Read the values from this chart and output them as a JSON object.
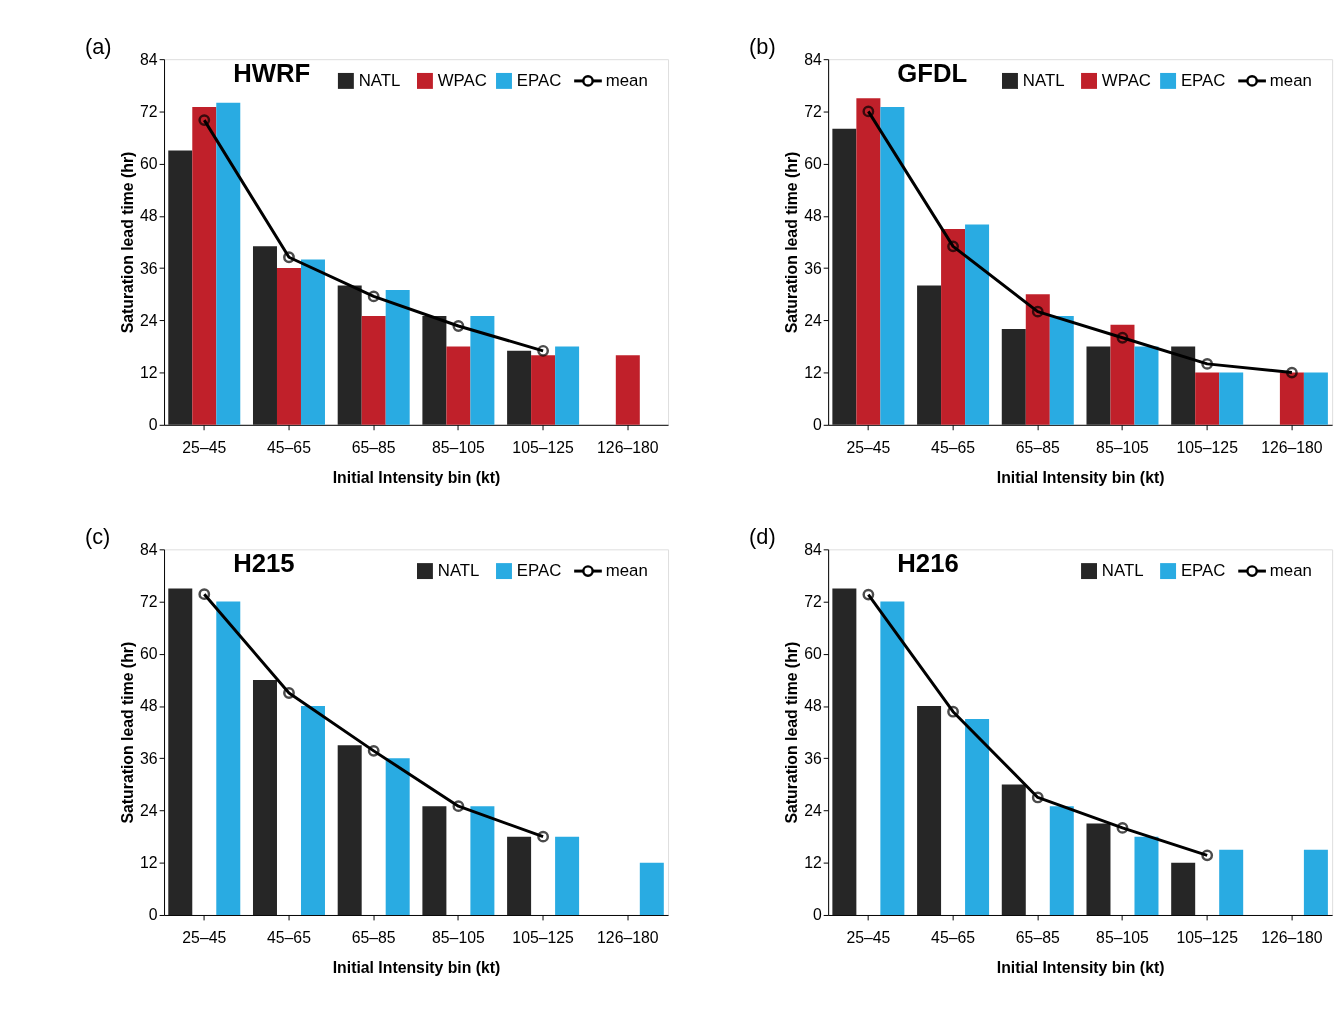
{
  "chart_data": [
    {
      "type": "bar",
      "title": "HWRF",
      "xlabel": "Initial Intensity bin (kt)",
      "ylabel": "Saturation lead time (hr)",
      "annotations": [
        "(a)"
      ],
      "categories": [
        "25–45",
        "45–65",
        "65–85",
        "85–105",
        "105–125",
        "126–180"
      ],
      "series": [
        {
          "name": "NATL",
          "color": "#262626",
          "values": [
            63,
            41,
            32,
            25,
            17,
            null
          ]
        },
        {
          "name": "WPAC",
          "color": "#c0202a",
          "values": [
            73,
            36,
            25,
            18,
            16,
            16
          ]
        },
        {
          "name": "EPAC",
          "color": "#29abe2",
          "values": [
            74,
            38,
            31,
            25,
            18,
            null
          ]
        },
        {
          "name": "mean",
          "color": "#000000",
          "type": "line",
          "marker": "circle",
          "values": [
            70,
            38.5,
            29.5,
            22.7,
            17,
            null
          ]
        }
      ],
      "ylim": [
        0,
        84
      ],
      "yticks": [
        0,
        12,
        24,
        36,
        48,
        60,
        72,
        84
      ],
      "grid": false,
      "legend": "top right"
    },
    {
      "type": "bar",
      "title": "GFDL",
      "xlabel": "Initial Intensity bin (kt)",
      "ylabel": "Saturation lead time (hr)",
      "annotations": [
        "(b)"
      ],
      "categories": [
        "25–45",
        "45–65",
        "65–85",
        "85–105",
        "105–125",
        "126–180"
      ],
      "series": [
        {
          "name": "NATL",
          "color": "#262626",
          "values": [
            68,
            32,
            22,
            18,
            18,
            null
          ]
        },
        {
          "name": "WPAC",
          "color": "#c0202a",
          "values": [
            75,
            45,
            30,
            23,
            12,
            12
          ]
        },
        {
          "name": "EPAC",
          "color": "#29abe2",
          "values": [
            73,
            46,
            25,
            18,
            12,
            12
          ]
        },
        {
          "name": "mean",
          "color": "#000000",
          "type": "line",
          "marker": "circle",
          "values": [
            72,
            41,
            26,
            20,
            14,
            12
          ]
        }
      ],
      "ylim": [
        0,
        84
      ],
      "yticks": [
        0,
        12,
        24,
        36,
        48,
        60,
        72,
        84
      ],
      "grid": false,
      "legend": "top right"
    },
    {
      "type": "bar",
      "title": "H215",
      "xlabel": "Initial Intensity bin (kt)",
      "ylabel": "Saturation lead time (hr)",
      "annotations": [
        "(c)"
      ],
      "categories": [
        "25–45",
        "45–65",
        "65–85",
        "85–105",
        "105–125",
        "126–180"
      ],
      "series": [
        {
          "name": "NATL",
          "color": "#262626",
          "values": [
            75,
            54,
            39,
            25,
            18,
            null
          ]
        },
        {
          "name": "EPAC",
          "color": "#29abe2",
          "values": [
            72,
            48,
            36,
            25,
            18,
            12
          ]
        },
        {
          "name": "mean",
          "color": "#000000",
          "type": "line",
          "marker": "circle",
          "values": [
            73.7,
            51,
            37.7,
            25,
            18,
            null
          ]
        }
      ],
      "ylim": [
        0,
        84
      ],
      "yticks": [
        0,
        12,
        24,
        36,
        48,
        60,
        72,
        84
      ],
      "grid": false,
      "legend": "top right"
    },
    {
      "type": "bar",
      "title": "H216",
      "xlabel": "Initial Intensity bin (kt)",
      "ylabel": "Saturation lead time (hr)",
      "annotations": [
        "(d)"
      ],
      "categories": [
        "25–45",
        "45–65",
        "65–85",
        "85–105",
        "105–125",
        "126–180"
      ],
      "series": [
        {
          "name": "NATL",
          "color": "#262626",
          "values": [
            75,
            48,
            30,
            21,
            12,
            null
          ]
        },
        {
          "name": "EPAC",
          "color": "#29abe2",
          "values": [
            72,
            45,
            25,
            18,
            15,
            15
          ]
        },
        {
          "name": "mean",
          "color": "#000000",
          "type": "line",
          "marker": "circle",
          "values": [
            73.6,
            46.7,
            27,
            20,
            13.7,
            null
          ]
        }
      ],
      "ylim": [
        0,
        84
      ],
      "yticks": [
        0,
        12,
        24,
        36,
        48,
        60,
        72,
        84
      ],
      "grid": false,
      "legend": "top right"
    }
  ]
}
